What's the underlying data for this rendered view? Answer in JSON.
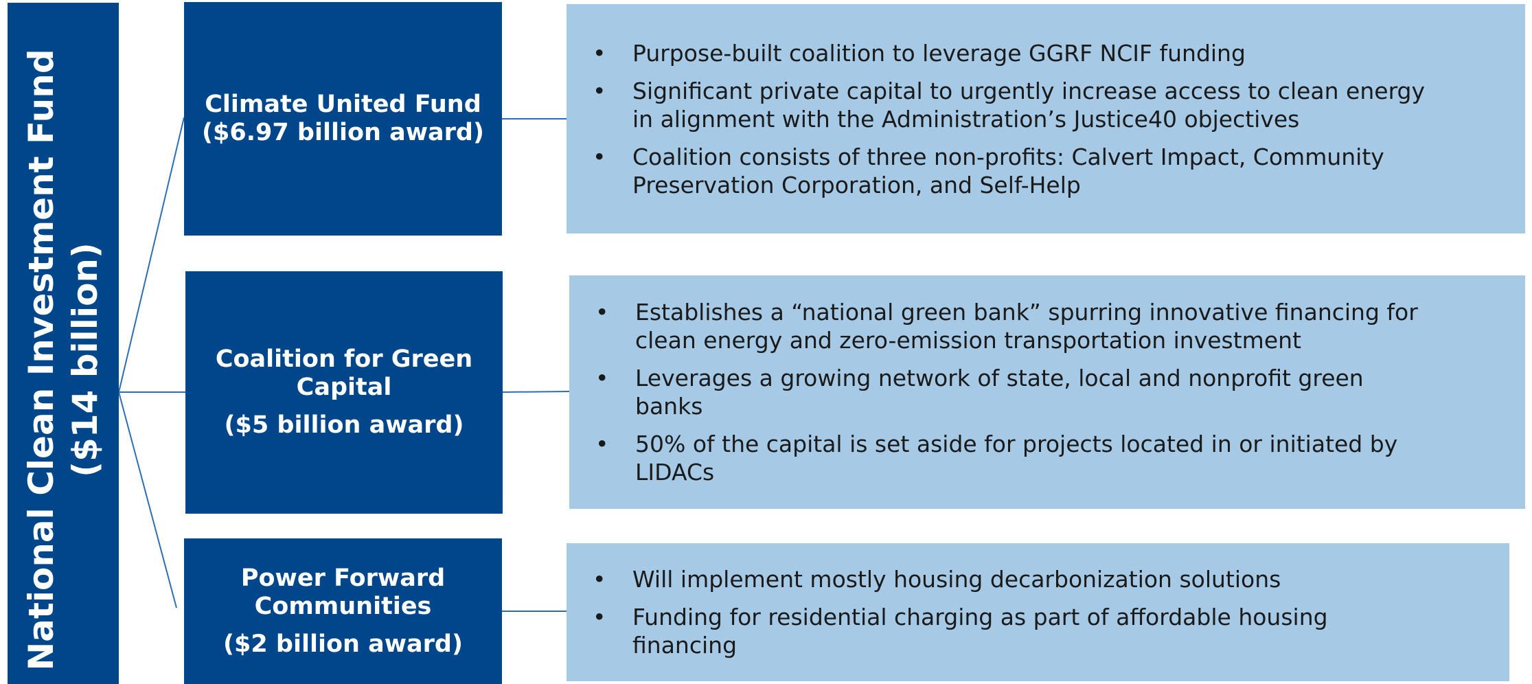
{
  "sidebar": {
    "lines": [
      "National Clean Investment Fund",
      "($14 billion)"
    ]
  },
  "awards": [
    {
      "name": [
        "Climate United Fund"
      ],
      "award": "($6.97 billion award)",
      "bullets": [
        [
          "Purpose-built coalition to leverage GGRF NCIF funding"
        ],
        [
          "Significant private capital to urgently increase access to clean energy",
          "in alignment with the Administration’s Justice40 objectives"
        ],
        [
          "Coalition consists of three non-profits: Calvert Impact, Community",
          "Preservation Corporation, and Self-Help"
        ]
      ]
    },
    {
      "name": [
        "Coalition for Green",
        "Capital"
      ],
      "award": "($5 billion award)",
      "bullets": [
        [
          "Establishes a “national green bank” spurring innovative financing for",
          "clean energy and zero-emission transportation investment"
        ],
        [
          "Leverages a growing network of state, local and nonprofit green",
          "banks"
        ],
        [
          "50% of the capital is set aside for projects located in or initiated by",
          "LIDACs"
        ]
      ]
    },
    {
      "name": [
        "Power Forward",
        "Communities"
      ],
      "award": "($2 billion award)",
      "bullets": [
        [
          "Will implement mostly housing decarbonization solutions"
        ],
        [
          "Funding for residential charging as part of affordable housing",
          "financing"
        ]
      ]
    }
  ]
}
